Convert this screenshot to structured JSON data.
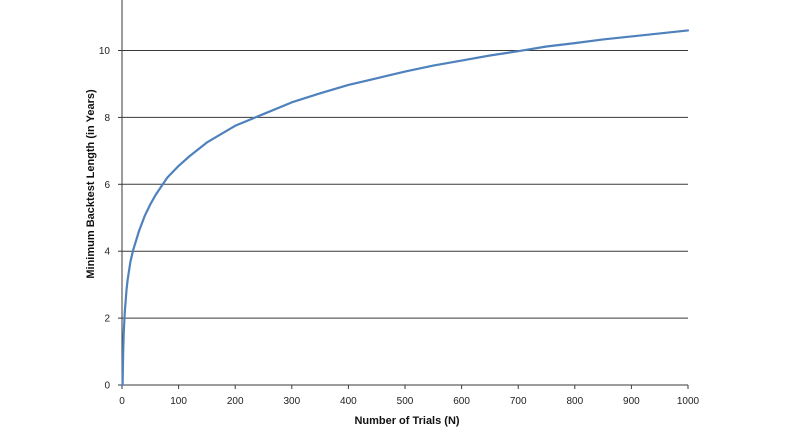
{
  "chart_data": {
    "type": "line",
    "title": "",
    "xlabel": "Number of Trials (N)",
    "ylabel": "Minimum Backtest Length (in Years)",
    "xlim": [
      0,
      1000
    ],
    "ylim": [
      0,
      12
    ],
    "x_ticks": [
      "0",
      "100",
      "200",
      "300",
      "400",
      "500",
      "600",
      "700",
      "800",
      "900",
      "1000"
    ],
    "y_ticks": [
      "0",
      "2",
      "4",
      "6",
      "8",
      "10"
    ],
    "grid": "horizontal",
    "series": [
      {
        "color": "#4f81bd",
        "x": [
          1,
          2,
          3,
          5,
          8,
          10,
          15,
          20,
          30,
          40,
          50,
          60,
          70,
          80,
          100,
          120,
          150,
          200,
          250,
          300,
          350,
          400,
          450,
          500,
          550,
          600,
          650,
          700,
          750,
          800,
          850,
          900,
          950,
          1000
        ],
        "y": [
          0.0,
          0.9,
          1.55,
          2.2,
          2.85,
          3.15,
          3.7,
          4.05,
          4.6,
          5.05,
          5.4,
          5.7,
          5.95,
          6.2,
          6.55,
          6.85,
          7.25,
          7.75,
          8.1,
          8.45,
          8.72,
          8.97,
          9.17,
          9.37,
          9.55,
          9.7,
          9.85,
          9.98,
          10.12,
          10.22,
          10.33,
          10.42,
          10.51,
          10.6
        ]
      }
    ]
  }
}
